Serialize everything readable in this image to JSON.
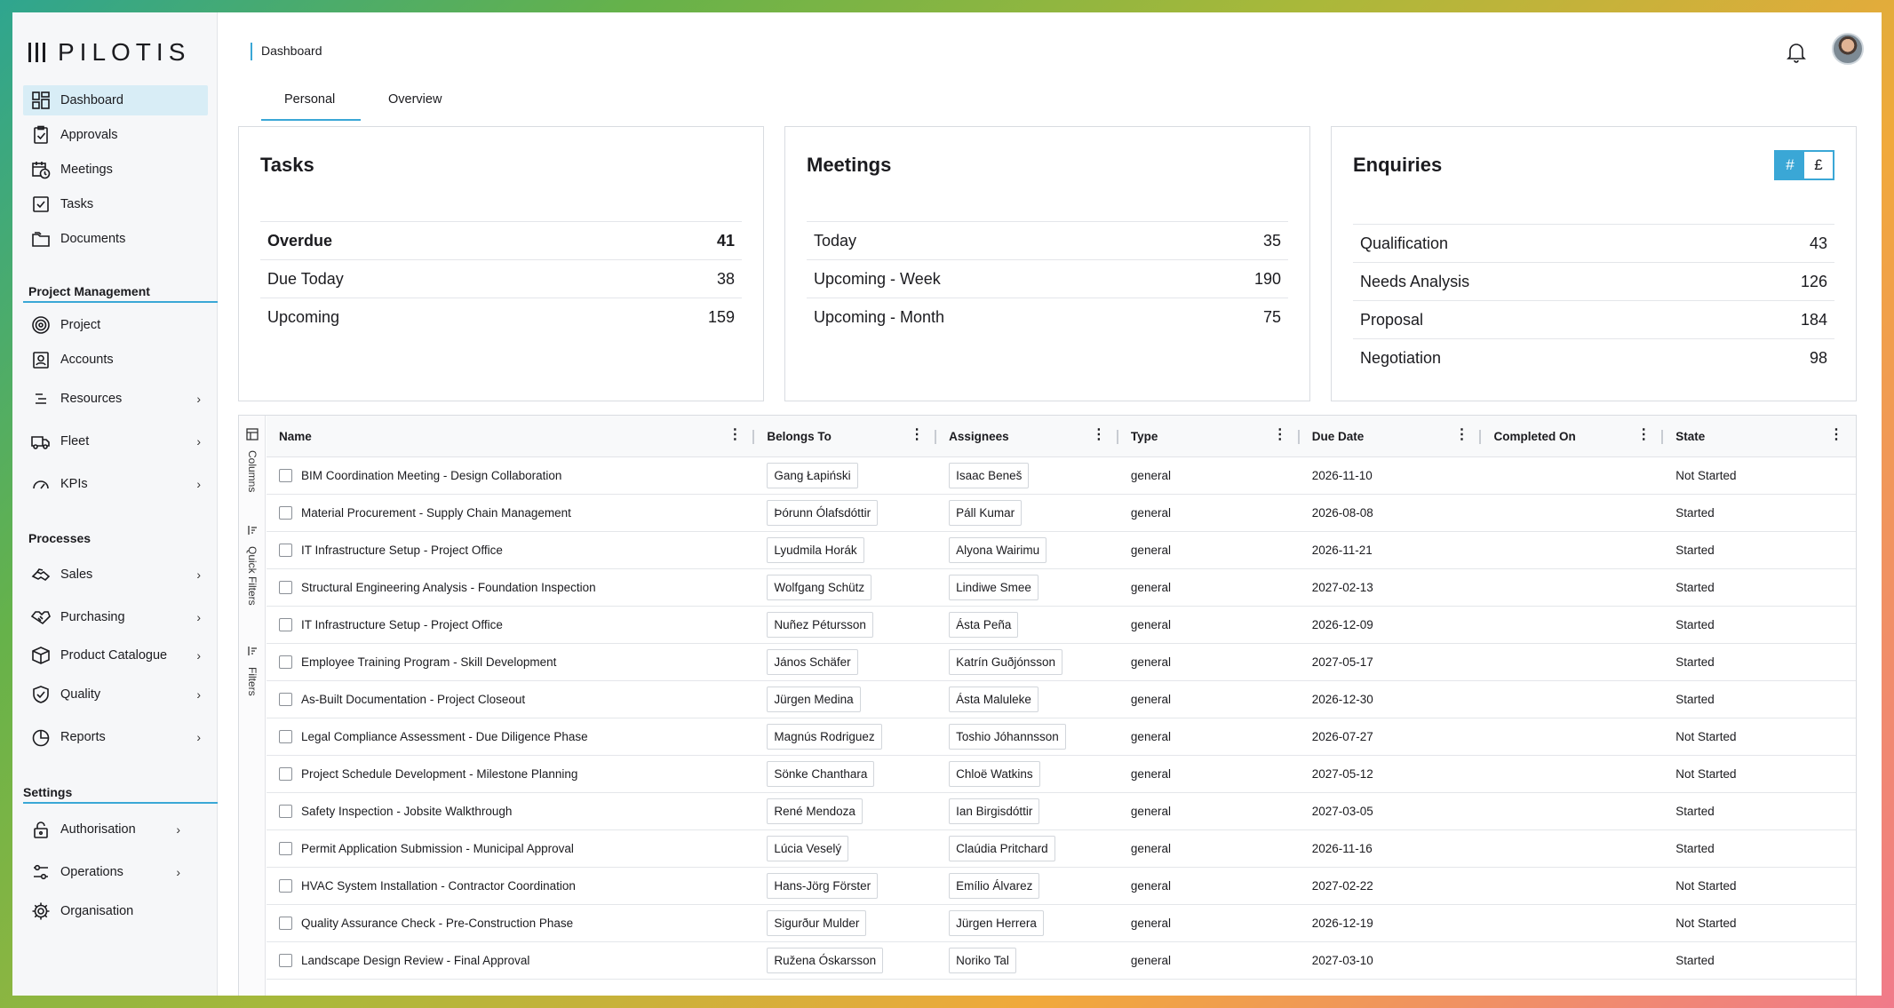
{
  "app": {
    "logo_text": "PILOTIS"
  },
  "sidebar": {
    "main_items": [
      {
        "label": "Dashboard",
        "icon": "grid-icon"
      },
      {
        "label": "Approvals",
        "icon": "clipboard-check-icon"
      },
      {
        "label": "Meetings",
        "icon": "calendar-clock-icon"
      },
      {
        "label": "Tasks",
        "icon": "checkbox-icon"
      },
      {
        "label": "Documents",
        "icon": "folder-icon"
      }
    ],
    "section_project": "Project Management",
    "project_items": [
      {
        "label": "Project",
        "icon": "target-icon"
      },
      {
        "label": "Accounts",
        "icon": "account-badge-icon"
      },
      {
        "label": "Resources",
        "icon": "list-icon"
      },
      {
        "label": "Fleet",
        "icon": "truck-icon"
      },
      {
        "label": "KPIs",
        "icon": "gauge-icon"
      }
    ],
    "section_processes": "Processes",
    "process_items": [
      {
        "label": "Sales",
        "icon": "handshake-icon"
      },
      {
        "label": "Purchasing",
        "icon": "deal-icon"
      },
      {
        "label": "Product Catalogue",
        "icon": "package-icon"
      },
      {
        "label": "Quality",
        "icon": "shield-check-icon"
      },
      {
        "label": "Reports",
        "icon": "pie-chart-icon"
      }
    ],
    "section_settings": "Settings",
    "settings_items": [
      {
        "label": "Authorisation",
        "icon": "lock-icon"
      },
      {
        "label": "Operations",
        "icon": "sliders-icon"
      },
      {
        "label": "Organisation",
        "icon": "gear-icon"
      }
    ]
  },
  "header": {
    "breadcrumb": "Dashboard"
  },
  "tabs": [
    {
      "label": "Personal"
    },
    {
      "label": "Overview"
    }
  ],
  "cards": {
    "tasks": {
      "title": "Tasks",
      "rows": [
        {
          "label": "Overdue",
          "value": "41"
        },
        {
          "label": "Due Today",
          "value": "38"
        },
        {
          "label": "Upcoming",
          "value": "159"
        }
      ]
    },
    "meetings": {
      "title": "Meetings",
      "rows": [
        {
          "label": "Today",
          "value": "35"
        },
        {
          "label": "Upcoming - Week",
          "value": "190"
        },
        {
          "label": "Upcoming - Month",
          "value": "75"
        }
      ]
    },
    "enquiries": {
      "title": "Enquiries",
      "toggle": {
        "count": "#",
        "currency": "£"
      },
      "rows": [
        {
          "label": "Qualification",
          "value": "43"
        },
        {
          "label": "Needs Analysis",
          "value": "126"
        },
        {
          "label": "Proposal",
          "value": "184"
        },
        {
          "label": "Negotiation",
          "value": "98"
        }
      ]
    }
  },
  "table": {
    "rail": {
      "columns": "Columns",
      "quick_filters": "Quick Filters",
      "filters": "Filters"
    },
    "columns": [
      "Name",
      "Belongs To",
      "Assignees",
      "Type",
      "Due Date",
      "Completed On",
      "State"
    ],
    "rows": [
      {
        "name": "BIM Coordination Meeting - Design Collaboration",
        "belongs": "Gang Łapiński",
        "assignee": "Isaac Beneš",
        "type": "general",
        "due": "2026-11-10",
        "completed": "",
        "state": "Not Started"
      },
      {
        "name": "Material Procurement - Supply Chain Management",
        "belongs": "Þórunn Ólafsdóttir",
        "assignee": "Páll Kumar",
        "type": "general",
        "due": "2026-08-08",
        "completed": "",
        "state": "Started"
      },
      {
        "name": "IT Infrastructure Setup - Project Office",
        "belongs": "Lyudmila Horák",
        "assignee": "Alyona Wairimu",
        "type": "general",
        "due": "2026-11-21",
        "completed": "",
        "state": "Started"
      },
      {
        "name": "Structural Engineering Analysis - Foundation Inspection",
        "belongs": "Wolfgang Schütz",
        "assignee": "Lindiwe Smee",
        "type": "general",
        "due": "2027-02-13",
        "completed": "",
        "state": "Started"
      },
      {
        "name": "IT Infrastructure Setup - Project Office",
        "belongs": "Nuñez Pétursson",
        "assignee": "Ásta Peña",
        "type": "general",
        "due": "2026-12-09",
        "completed": "",
        "state": "Started"
      },
      {
        "name": "Employee Training Program - Skill Development",
        "belongs": "János Schäfer",
        "assignee": "Katrín Guðjónsson",
        "type": "general",
        "due": "2027-05-17",
        "completed": "",
        "state": "Started"
      },
      {
        "name": "As-Built Documentation - Project Closeout",
        "belongs": "Jürgen Medina",
        "assignee": "Ásta Maluleke",
        "type": "general",
        "due": "2026-12-30",
        "completed": "",
        "state": "Started"
      },
      {
        "name": "Legal Compliance Assessment - Due Diligence Phase",
        "belongs": "Magnús Rodriguez",
        "assignee": "Toshio Jóhannsson",
        "type": "general",
        "due": "2026-07-27",
        "completed": "",
        "state": "Not Started"
      },
      {
        "name": "Project Schedule Development - Milestone Planning",
        "belongs": "Sönke Chanthara",
        "assignee": "Chloë Watkins",
        "type": "general",
        "due": "2027-05-12",
        "completed": "",
        "state": "Not Started"
      },
      {
        "name": "Safety Inspection - Jobsite Walkthrough",
        "belongs": "René Mendoza",
        "assignee": "Ian Birgisdóttir",
        "type": "general",
        "due": "2027-03-05",
        "completed": "",
        "state": "Started"
      },
      {
        "name": "Permit Application Submission - Municipal Approval",
        "belongs": "Lúcia Veselý",
        "assignee": "Claúdia Pritchard",
        "type": "general",
        "due": "2026-11-16",
        "completed": "",
        "state": "Started"
      },
      {
        "name": "HVAC System Installation - Contractor Coordination",
        "belongs": "Hans-Jörg Förster",
        "assignee": "Emílio Álvarez",
        "type": "general",
        "due": "2027-02-22",
        "completed": "",
        "state": "Not Started"
      },
      {
        "name": "Quality Assurance Check - Pre-Construction Phase",
        "belongs": "Sigurður Mulder",
        "assignee": "Jürgen Herrera",
        "type": "general",
        "due": "2026-12-19",
        "completed": "",
        "state": "Not Started"
      },
      {
        "name": "Landscape Design Review - Final Approval",
        "belongs": "Ružena Óskarsson",
        "assignee": "Noriko Tal",
        "type": "general",
        "due": "2027-03-10",
        "completed": "",
        "state": "Started"
      }
    ]
  }
}
